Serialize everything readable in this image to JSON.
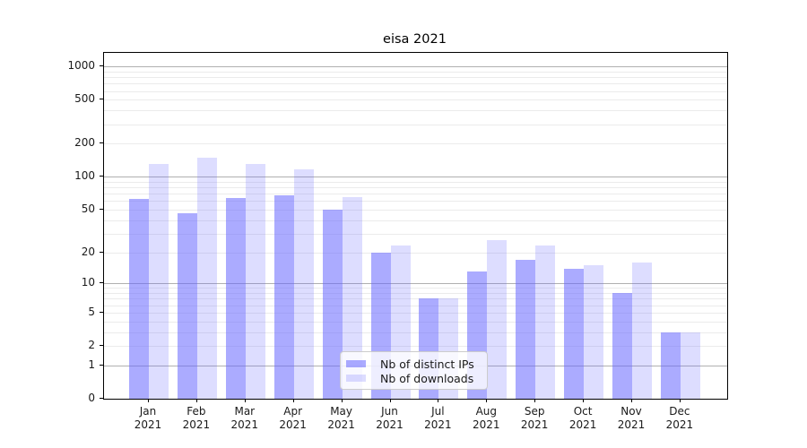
{
  "title": "eisa 2021",
  "chart_data": {
    "type": "bar",
    "title": "eisa 2021",
    "scale": "log1p",
    "grid": true,
    "legend_position": "lower-center",
    "categories": [
      "Jan",
      "Feb",
      "Mar",
      "Apr",
      "May",
      "Jun",
      "Jul",
      "Aug",
      "Sep",
      "Oct",
      "Nov",
      "Dec"
    ],
    "category_year": "2021",
    "yticks": [
      0,
      1,
      2,
      5,
      10,
      20,
      50,
      100,
      200,
      500,
      1000
    ],
    "minor_gridlines": [
      2,
      3,
      4,
      5,
      6,
      7,
      8,
      9,
      20,
      30,
      40,
      50,
      60,
      70,
      80,
      90,
      200,
      300,
      400,
      500,
      600,
      700,
      800,
      900
    ],
    "major_gridlines": [
      1,
      10,
      100,
      1000
    ],
    "ylim": [
      0,
      1327
    ],
    "series": [
      {
        "name": "Nb of distinct IPs",
        "color": "rgba(102,102,255,0.55)",
        "values": [
          63,
          46,
          64,
          68,
          50,
          20,
          7,
          13,
          17,
          14,
          8,
          3
        ]
      },
      {
        "name": "Nb of downloads",
        "color": "rgba(102,102,255,0.22)",
        "values": [
          130,
          150,
          131,
          117,
          65,
          23,
          7,
          26,
          23,
          15,
          16,
          3
        ]
      }
    ]
  },
  "colors": {
    "major_grid": "#b0b0b0",
    "minor_grid": "#ebebeb",
    "axis": "#000000",
    "text": "#1a1a1a",
    "legend_border": "#cccccc"
  }
}
